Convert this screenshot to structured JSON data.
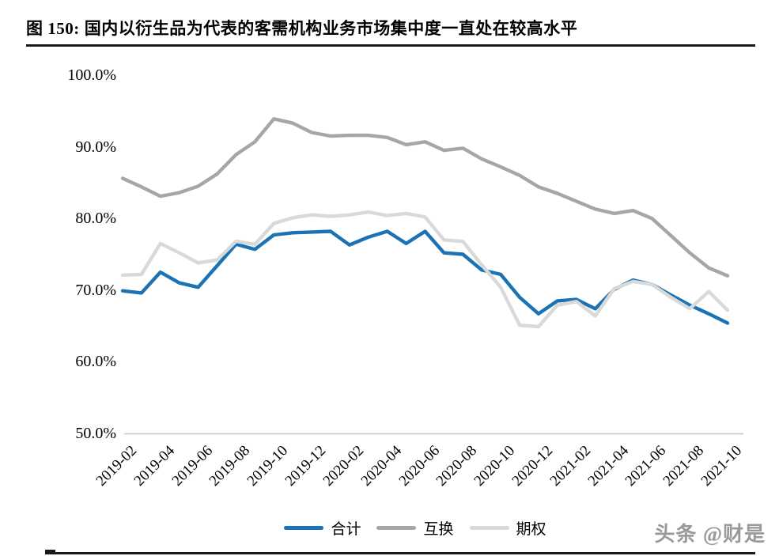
{
  "page": {
    "title_prefix": "图 150:",
    "title_text": "国内以衍生品为代表的客需机构业务市场集中度一直处在较高水平",
    "watermark": "头条 @财是"
  },
  "colors": {
    "total_blue": "#1b73b6",
    "swap_gray": "#a6a6a6",
    "option_lightgray": "#d9d9d9",
    "axis_line": "#c6c6c6",
    "rule_dark": "#1a1a1a"
  },
  "chart_data": {
    "type": "line",
    "title": "图 150: 国内以衍生品为代表的客需机构业务市场集中度一直处在较高水平",
    "xlabel": "",
    "ylabel": "",
    "ylim": [
      50,
      100
    ],
    "y_tick_labels": [
      "100.0%",
      "90.0%",
      "80.0%",
      "70.0%",
      "60.0%",
      "50.0%"
    ],
    "x_ticks_every": 2,
    "grid": false,
    "legend_position": "bottom",
    "categories": [
      "2019-02",
      "2019-03",
      "2019-04",
      "2019-05",
      "2019-06",
      "2019-07",
      "2019-08",
      "2019-09",
      "2019-10",
      "2019-11",
      "2019-12",
      "2020-01",
      "2020-02",
      "2020-03",
      "2020-04",
      "2020-05",
      "2020-06",
      "2020-07",
      "2020-08",
      "2020-09",
      "2020-10",
      "2020-11",
      "2020-12",
      "2021-01",
      "2021-02",
      "2021-03",
      "2021-04",
      "2021-05",
      "2021-06",
      "2021-07",
      "2021-08",
      "2021-09",
      "2021-10"
    ],
    "series": [
      {
        "key": "heji",
        "name": "合计",
        "color": "#1b73b6",
        "values": [
          69.9,
          69.6,
          72.5,
          71.0,
          70.4,
          73.4,
          76.4,
          75.7,
          77.7,
          78.0,
          78.1,
          78.2,
          76.3,
          77.4,
          78.2,
          76.5,
          78.2,
          75.2,
          75.0,
          72.8,
          72.2,
          69.0,
          66.7,
          68.5,
          68.7,
          67.4,
          70.1,
          71.4,
          70.8,
          69.3,
          67.9,
          66.7,
          65.4
        ]
      },
      {
        "key": "huhuan",
        "name": "互换",
        "color": "#a6a6a6",
        "values": [
          85.6,
          84.4,
          83.1,
          83.6,
          84.5,
          86.2,
          88.9,
          90.7,
          93.9,
          93.3,
          92.0,
          91.5,
          91.6,
          91.6,
          91.3,
          90.3,
          90.7,
          89.5,
          89.8,
          88.3,
          87.2,
          86.0,
          84.4,
          83.5,
          82.4,
          81.3,
          80.7,
          81.1,
          80.0,
          77.6,
          75.2,
          73.1,
          72.0
        ]
      },
      {
        "key": "qiquan",
        "name": "期权",
        "color": "#d9d9d9",
        "values": [
          72.1,
          72.2,
          76.5,
          75.2,
          73.8,
          74.2,
          76.8,
          76.4,
          79.3,
          80.1,
          80.5,
          80.3,
          80.5,
          80.9,
          80.4,
          80.7,
          80.2,
          77.0,
          76.8,
          73.5,
          70.4,
          65.1,
          64.9,
          67.9,
          68.4,
          66.4,
          70.2,
          71.2,
          70.8,
          69.0,
          67.4,
          69.8,
          67.2
        ]
      }
    ]
  }
}
